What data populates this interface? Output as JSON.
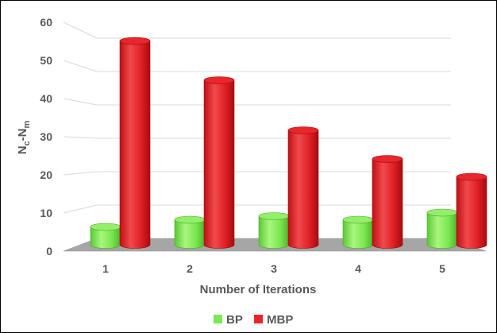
{
  "chart_data": {
    "type": "bar",
    "categories": [
      "1",
      "2",
      "3",
      "4",
      "5"
    ],
    "series": [
      {
        "name": "BP",
        "values": [
          5,
          7,
          8,
          7,
          9
        ],
        "color": "#7be84f"
      },
      {
        "name": "MBP",
        "values": [
          57,
          46,
          32,
          24,
          19
        ],
        "color": "#e8262b"
      }
    ],
    "y_ticks": [
      "0",
      "10",
      "20",
      "30",
      "40",
      "50",
      "60"
    ],
    "ylim": [
      0,
      60
    ],
    "xlabel": "Number of Iterations",
    "ylabel_main": "N",
    "ylabel_sub1": "c",
    "ylabel_mid": "-N",
    "ylabel_sub2": "m",
    "legend_position": "bottom",
    "grid": true,
    "style": "3d-cylinder"
  }
}
